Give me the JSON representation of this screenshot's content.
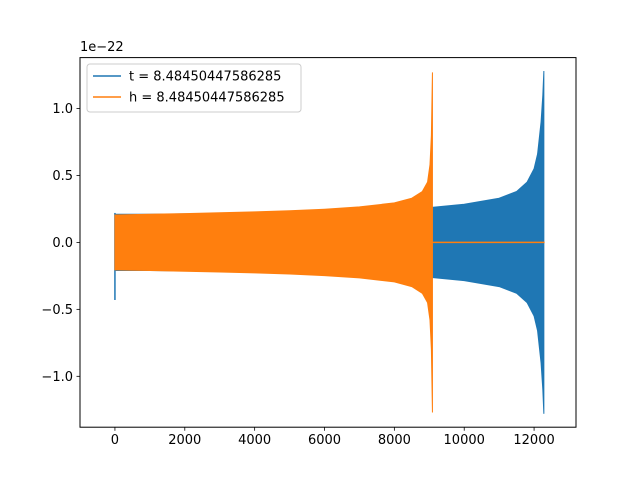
{
  "chart_data": {
    "type": "line",
    "title": "",
    "xlabel": "",
    "ylabel": "",
    "y_offset_label": "1e−22",
    "xlim": [
      -1000,
      13200
    ],
    "ylim": [
      -1.38,
      1.38
    ],
    "xticks": [
      0,
      2000,
      4000,
      6000,
      8000,
      10000,
      12000
    ],
    "xtick_labels": [
      "0",
      "2000",
      "4000",
      "6000",
      "8000",
      "10000",
      "12000"
    ],
    "yticks": [
      -1.0,
      -0.5,
      0.0,
      0.5,
      1.0
    ],
    "ytick_labels": [
      "−1.0",
      "−0.5",
      "0.0",
      "0.5",
      "1.0"
    ],
    "grid": false,
    "legend_position": "top-left",
    "series": [
      {
        "name": "t = 8.48450447586285",
        "color": "#1f77b4",
        "envelope": {
          "x": [
            0,
            1000,
            2000,
            3000,
            4000,
            5000,
            6000,
            7000,
            8000,
            9000,
            10000,
            11000,
            11500,
            11800,
            12000,
            12100,
            12200,
            12250,
            12280
          ],
          "upper": [
            0.21,
            0.21,
            0.213,
            0.216,
            0.22,
            0.224,
            0.229,
            0.236,
            0.246,
            0.26,
            0.285,
            0.33,
            0.38,
            0.45,
            0.55,
            0.66,
            0.9,
            1.1,
            1.28
          ],
          "lower": [
            -0.21,
            -0.21,
            -0.213,
            -0.216,
            -0.22,
            -0.224,
            -0.229,
            -0.236,
            -0.246,
            -0.26,
            -0.285,
            -0.33,
            -0.38,
            -0.45,
            -0.55,
            -0.66,
            -0.9,
            -1.1,
            -1.28
          ]
        },
        "start_spike": {
          "x": 0,
          "max": 0.22,
          "min": -0.43
        },
        "tail": {
          "x": [
            12280,
            12300
          ],
          "y": 0.0
        }
      },
      {
        "name": "h = 8.48450447586285",
        "color": "#ff7f0e",
        "envelope": {
          "x": [
            0,
            1000,
            2000,
            3000,
            4000,
            5000,
            6000,
            7000,
            8000,
            8500,
            8800,
            8950,
            9020,
            9060,
            9090
          ],
          "upper": [
            0.205,
            0.21,
            0.215,
            0.221,
            0.228,
            0.236,
            0.248,
            0.265,
            0.295,
            0.33,
            0.38,
            0.45,
            0.58,
            0.8,
            1.27
          ],
          "lower": [
            -0.205,
            -0.21,
            -0.215,
            -0.221,
            -0.228,
            -0.236,
            -0.248,
            -0.265,
            -0.295,
            -0.33,
            -0.38,
            -0.45,
            -0.58,
            -0.8,
            -1.27
          ]
        },
        "tail": {
          "x": [
            9090,
            12300
          ],
          "y": 0.0
        }
      }
    ]
  }
}
